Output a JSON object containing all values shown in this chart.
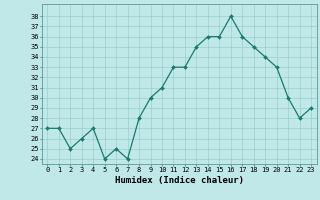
{
  "x": [
    0,
    1,
    2,
    3,
    4,
    5,
    6,
    7,
    8,
    9,
    10,
    11,
    12,
    13,
    14,
    15,
    16,
    17,
    18,
    19,
    20,
    21,
    22,
    23
  ],
  "y": [
    27,
    27,
    25,
    26,
    27,
    24,
    25,
    24,
    28,
    30,
    31,
    33,
    33,
    35,
    36,
    36,
    38,
    36,
    35,
    34,
    33,
    30,
    28,
    29
  ],
  "line_color": "#1a7a6e",
  "marker_color": "#1a7a6e",
  "bg_color": "#c0e8e8",
  "grid_color": "#90c8c8",
  "xlabel": "Humidex (Indice chaleur)",
  "ylabel_ticks": [
    24,
    25,
    26,
    27,
    28,
    29,
    30,
    31,
    32,
    33,
    34,
    35,
    36,
    37,
    38
  ],
  "ylim": [
    23.5,
    39.2
  ],
  "xlim": [
    -0.5,
    23.5
  ],
  "xticks": [
    0,
    1,
    2,
    3,
    4,
    5,
    6,
    7,
    8,
    9,
    10,
    11,
    12,
    13,
    14,
    15,
    16,
    17,
    18,
    19,
    20,
    21,
    22,
    23
  ],
  "xtick_labels": [
    "0",
    "1",
    "2",
    "3",
    "4",
    "5",
    "6",
    "7",
    "8",
    "9",
    "10",
    "11",
    "12",
    "13",
    "14",
    "15",
    "16",
    "17",
    "18",
    "19",
    "20",
    "21",
    "22",
    "23"
  ],
  "font_color": "#000000",
  "xlabel_fontsize": 6.5,
  "tick_fontsize": 5.0,
  "linewidth": 0.9,
  "markersize": 2.0
}
